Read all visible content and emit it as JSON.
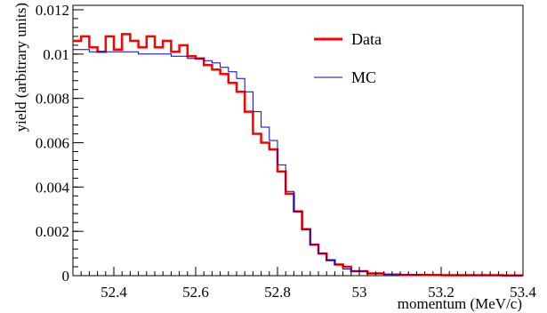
{
  "chart_data": {
    "type": "line",
    "title": "",
    "xlabel": "momentum (MeV/c)",
    "ylabel": "yield (arbitrary units)",
    "xlim": [
      52.3,
      53.4
    ],
    "ylim": [
      0,
      0.0122
    ],
    "x_ticks": [
      "52.4",
      "52.6",
      "52.8",
      "53",
      "53.2",
      "53.4"
    ],
    "y_ticks": [
      "0",
      "0.002",
      "0.004",
      "0.006",
      "0.008",
      "0.01",
      "0.012"
    ],
    "legend_position": "top-right",
    "series": [
      {
        "name": "Data",
        "color": "#ff0000",
        "style": "step",
        "x": [
          52.3,
          52.32,
          52.34,
          52.36,
          52.38,
          52.4,
          52.42,
          52.44,
          52.46,
          52.48,
          52.5,
          52.52,
          52.54,
          52.56,
          52.58,
          52.6,
          52.62,
          52.64,
          52.66,
          52.68,
          52.7,
          52.72,
          52.74,
          52.76,
          52.78,
          52.8,
          52.82,
          52.84,
          52.86,
          52.88,
          52.9,
          52.92,
          52.94,
          52.96,
          52.98,
          53.0,
          53.02,
          53.04,
          53.06,
          53.08,
          53.1,
          53.15,
          53.2,
          53.25,
          53.3,
          53.35,
          53.4
        ],
        "y": [
          0.0106,
          0.0108,
          0.0103,
          0.0101,
          0.0108,
          0.0102,
          0.0109,
          0.0106,
          0.0103,
          0.0108,
          0.0103,
          0.0106,
          0.0101,
          0.0104,
          0.0099,
          0.0098,
          0.0095,
          0.0093,
          0.0091,
          0.0087,
          0.0083,
          0.0074,
          0.0064,
          0.006,
          0.0057,
          0.0047,
          0.0037,
          0.0029,
          0.0021,
          0.0014,
          0.001,
          0.0007,
          0.0005,
          0.0004,
          0.0002,
          0.0002,
          0.0001,
          0.0001,
          5e-05,
          5e-05,
          3e-05,
          3e-05,
          2e-05,
          2e-05,
          2e-05,
          1e-05,
          1e-05
        ]
      },
      {
        "name": "MC",
        "color": "#0000cc",
        "style": "step",
        "x": [
          52.3,
          52.32,
          52.34,
          52.36,
          52.38,
          52.4,
          52.42,
          52.44,
          52.46,
          52.48,
          52.5,
          52.52,
          52.54,
          52.56,
          52.58,
          52.6,
          52.62,
          52.64,
          52.66,
          52.68,
          52.7,
          52.72,
          52.74,
          52.76,
          52.78,
          52.8,
          52.82,
          52.84,
          52.86,
          52.88,
          52.9,
          52.92,
          52.94,
          52.96,
          52.98,
          53.0,
          53.02,
          53.04,
          53.06,
          53.08,
          53.1,
          53.15,
          53.2,
          53.25,
          53.3,
          53.35,
          53.4
        ],
        "y": [
          0.0102,
          0.0102,
          0.0101,
          0.0101,
          0.0101,
          0.0101,
          0.0101,
          0.0101,
          0.01,
          0.01,
          0.01,
          0.01,
          0.0099,
          0.0099,
          0.0098,
          0.0098,
          0.0097,
          0.0096,
          0.0094,
          0.0092,
          0.0089,
          0.0083,
          0.0074,
          0.0067,
          0.0061,
          0.005,
          0.0038,
          0.0029,
          0.0021,
          0.0014,
          0.001,
          0.0007,
          0.0005,
          0.0003,
          0.0002,
          0.0002,
          0.0001,
          0.0001,
          5e-05,
          4e-05,
          3e-05,
          2e-05,
          2e-05,
          1e-05,
          1e-05,
          1e-05,
          1e-05
        ]
      }
    ]
  }
}
